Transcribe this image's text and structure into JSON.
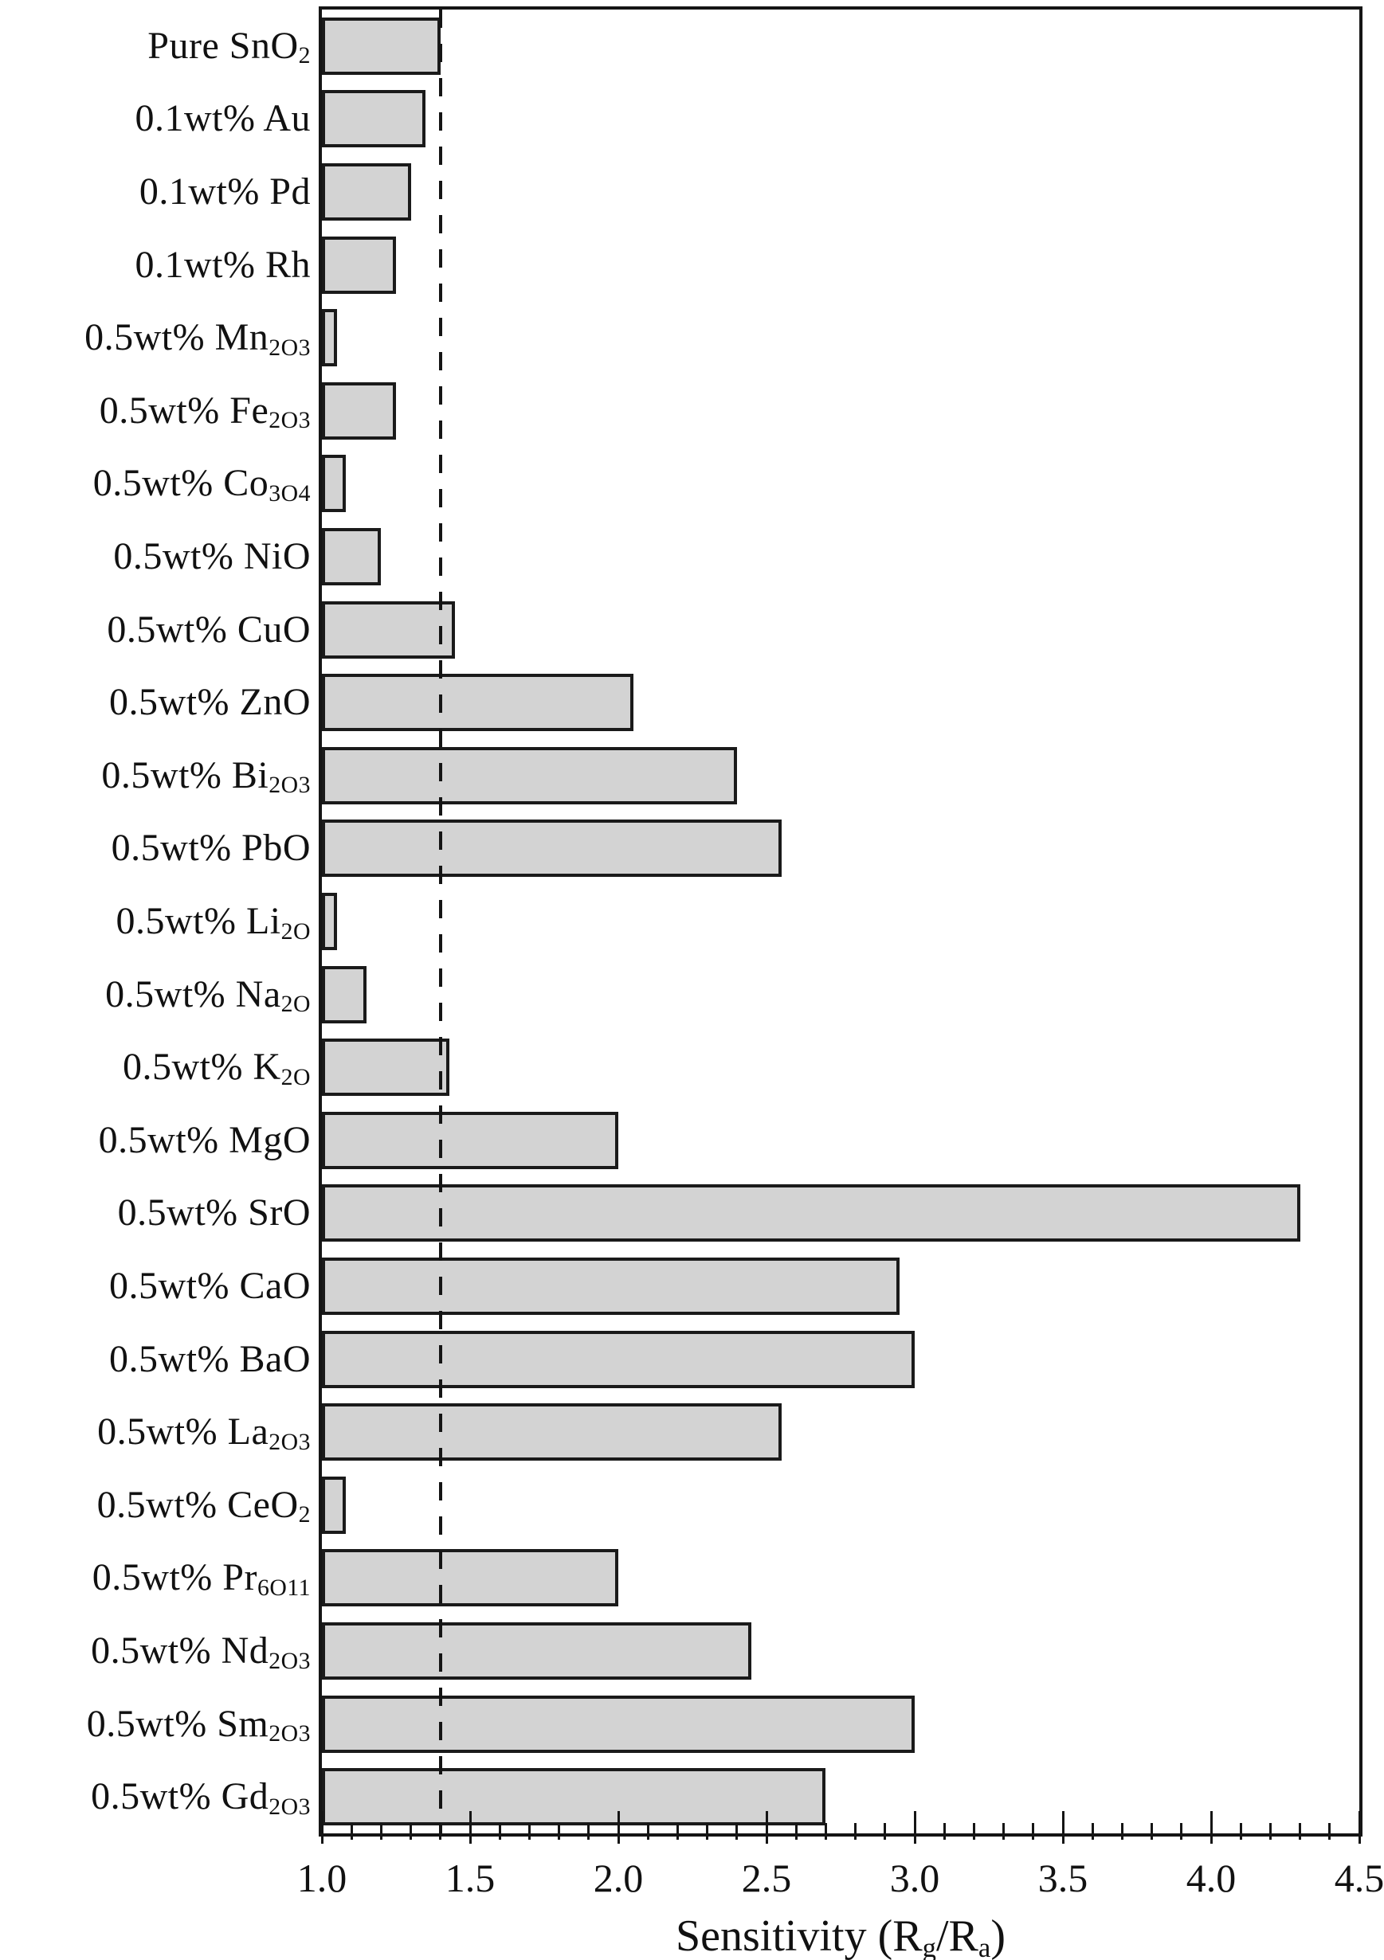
{
  "figure": {
    "background_color": "#ffffff",
    "text_color": "#111111"
  },
  "chart_data": {
    "type": "bar",
    "orientation": "horizontal",
    "title": "",
    "xlabel": "Sensitivity (R_g/R_a)",
    "ylabel": "",
    "xlim": [
      1.0,
      4.5
    ],
    "x_ticks": [
      1.0,
      1.5,
      2.0,
      2.5,
      3.0,
      3.5,
      4.0,
      4.5
    ],
    "x_tick_labels": [
      "1.0",
      "1.5",
      "2.0",
      "2.5",
      "3.0",
      "3.5",
      "4.0",
      "4.5"
    ],
    "minor_tick_step": 0.1,
    "grid": false,
    "legend": false,
    "reference_line_x": 1.4,
    "reference_line_style": "dashed",
    "categories": [
      "Pure SnO_2",
      "0.1wt% Au",
      "0.1wt% Pd",
      "0.1wt% Rh",
      "0.5wt% Mn_2O_3",
      "0.5wt% Fe_2O_3",
      "0.5wt% Co_3O_4",
      "0.5wt% NiO",
      "0.5wt% CuO",
      "0.5wt% ZnO",
      "0.5wt% Bi_2O_3",
      "0.5wt% PbO",
      "0.5wt% Li_2O",
      "0.5wt% Na_2O",
      "0.5wt% K_2O",
      "0.5wt% MgO",
      "0.5wt% SrO",
      "0.5wt% CaO",
      "0.5wt% BaO",
      "0.5wt% La_2O_3",
      "0.5wt% CeO_2",
      "0.5wt% Pr_6O_11",
      "0.5wt% Nd_2O_3",
      "0.5wt% Sm_2O_3",
      "0.5wt% Gd_2O_3"
    ],
    "values": [
      1.4,
      1.35,
      1.3,
      1.25,
      1.05,
      1.25,
      1.08,
      1.2,
      1.45,
      2.05,
      2.4,
      2.55,
      1.05,
      1.15,
      1.43,
      2.0,
      4.3,
      2.95,
      3.0,
      2.55,
      1.08,
      2.0,
      2.45,
      3.0,
      2.7
    ],
    "styles": {
      "bar_fill": "#d3d3d3",
      "bar_border": "#1a1a1a",
      "axis_color": "#151515",
      "reference_line_color": "#141414"
    }
  }
}
